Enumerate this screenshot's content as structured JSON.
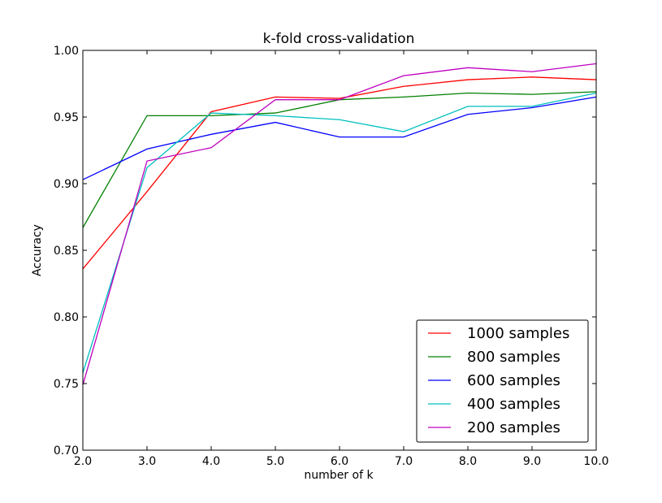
{
  "chart_data": {
    "type": "line",
    "title": "k-fold cross-validation",
    "xlabel": "number of k",
    "ylabel": "Accuracy",
    "xlim": [
      2.0,
      10.0
    ],
    "ylim": [
      0.7,
      1.0
    ],
    "xticks": [
      2.0,
      3.0,
      4.0,
      5.0,
      6.0,
      7.0,
      8.0,
      9.0,
      10.0
    ],
    "xtick_labels": [
      "2.0",
      "3.0",
      "4.0",
      "5.0",
      "6.0",
      "7.0",
      "8.0",
      "9.0",
      "10.0"
    ],
    "yticks": [
      0.7,
      0.75,
      0.8,
      0.85,
      0.9,
      0.95,
      1.0
    ],
    "ytick_labels": [
      "0.70",
      "0.75",
      "0.80",
      "0.85",
      "0.90",
      "0.95",
      "1.00"
    ],
    "grid": false,
    "legend_position": "lower-right",
    "x": [
      2,
      3,
      4,
      5,
      6,
      7,
      8,
      9,
      10
    ],
    "series": [
      {
        "name": "1000 samples",
        "color": "#ff0000",
        "values": [
          0.836,
          0.894,
          0.954,
          0.965,
          0.964,
          0.973,
          0.978,
          0.98,
          0.978
        ]
      },
      {
        "name": "800 samples",
        "color": "#008000",
        "values": [
          0.867,
          0.951,
          0.951,
          0.953,
          0.963,
          0.965,
          0.968,
          0.967,
          0.969
        ]
      },
      {
        "name": "600 samples",
        "color": "#0000ff",
        "values": [
          0.903,
          0.926,
          0.937,
          0.946,
          0.935,
          0.935,
          0.952,
          0.957,
          0.965
        ]
      },
      {
        "name": "400 samples",
        "color": "#00bfbf",
        "values": [
          0.758,
          0.912,
          0.953,
          0.951,
          0.948,
          0.939,
          0.958,
          0.958,
          0.968
        ]
      },
      {
        "name": "200 samples",
        "color": "#bf00bf",
        "values": [
          0.749,
          0.917,
          0.927,
          0.963,
          0.963,
          0.981,
          0.987,
          0.984,
          0.99
        ]
      }
    ]
  }
}
